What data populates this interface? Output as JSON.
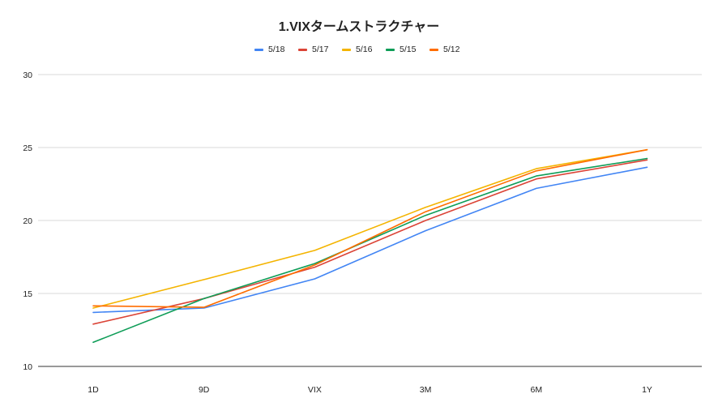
{
  "chart_data": {
    "type": "line",
    "title": "1.VIXタームストラクチャー",
    "xlabel": "",
    "ylabel": "",
    "categories": [
      "1D",
      "9D",
      "VIX",
      "3M",
      "6M",
      "1Y"
    ],
    "ylim": [
      10,
      30
    ],
    "yticks": [
      "10",
      "15",
      "20",
      "25",
      "30"
    ],
    "grid": true,
    "legend_position": "top",
    "series": [
      {
        "name": "5/18",
        "color": "#4285f4",
        "values": [
          13.7,
          14.0,
          16.0,
          19.3,
          22.2,
          23.65
        ]
      },
      {
        "name": "5/17",
        "color": "#db4437",
        "values": [
          12.9,
          14.65,
          16.8,
          20.0,
          22.85,
          24.15
        ]
      },
      {
        "name": "5/16",
        "color": "#f4b400",
        "values": [
          14.0,
          15.95,
          17.95,
          20.9,
          23.55,
          24.85
        ]
      },
      {
        "name": "5/15",
        "color": "#0f9d58",
        "values": [
          11.65,
          14.65,
          17.05,
          20.35,
          23.05,
          24.25
        ]
      },
      {
        "name": "5/12",
        "color": "#ff6d00",
        "values": [
          14.15,
          14.05,
          16.95,
          20.6,
          23.4,
          24.85
        ]
      }
    ]
  }
}
